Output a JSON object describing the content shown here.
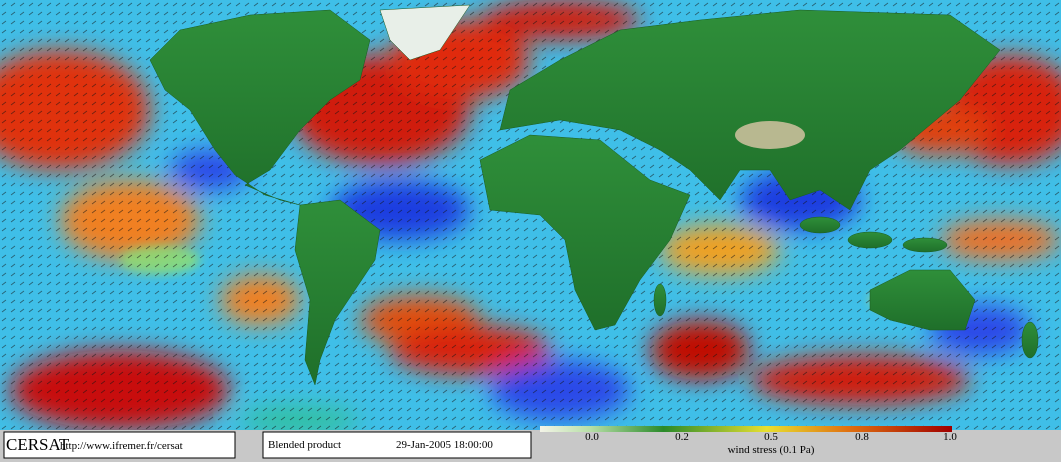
{
  "logo": "CERSAT",
  "url": "http://www.ifremer.fr/cersat",
  "product": "Blended product",
  "date": "29-Jan-2005 18:00:00",
  "colorbar": {
    "ticks": [
      "0.0",
      "0.2",
      "0.5",
      "0.8",
      "1.0"
    ],
    "label": "wind stress (0.1 Pa)"
  }
}
